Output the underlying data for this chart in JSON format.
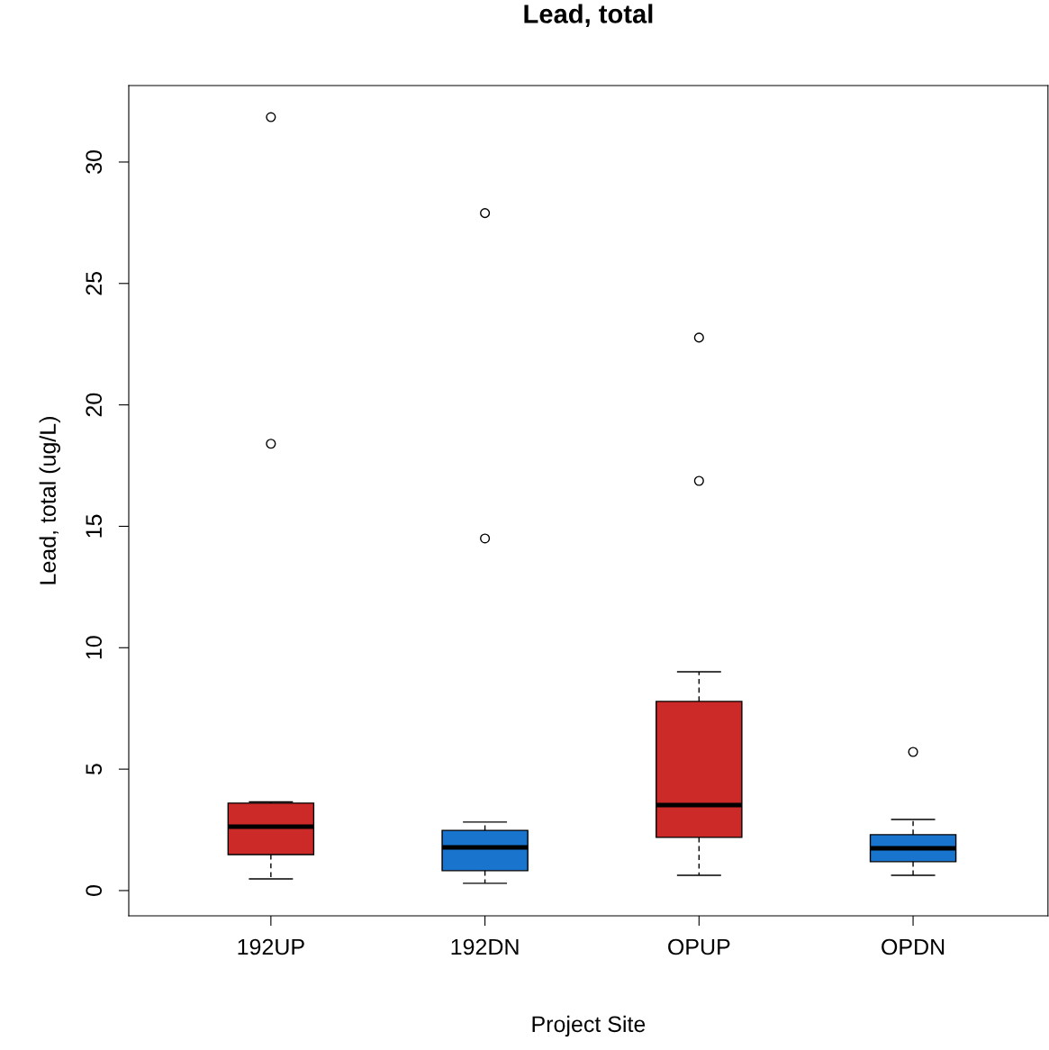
{
  "chart_data": {
    "type": "box",
    "title": "Lead, total",
    "xlabel": "Project Site",
    "ylabel": "Lead, total (ug/L)",
    "categories": [
      "192UP",
      "192DN",
      "OPUP",
      "OPDN"
    ],
    "colors": [
      "#cc2929",
      "#1874cd",
      "#cc2929",
      "#1874cd"
    ],
    "boxes": [
      {
        "low": 0.48,
        "q1": 1.48,
        "median": 2.63,
        "q3": 3.6,
        "high": 3.65,
        "outliers": [
          31.85,
          18.4
        ]
      },
      {
        "low": 0.3,
        "q1": 0.82,
        "median": 1.78,
        "q3": 2.48,
        "high": 2.82,
        "outliers": [
          27.9,
          14.5
        ]
      },
      {
        "low": 0.63,
        "q1": 2.19,
        "median": 3.52,
        "q3": 7.79,
        "high": 9.01,
        "outliers": [
          22.77,
          16.87
        ]
      },
      {
        "low": 0.63,
        "q1": 1.19,
        "median": 1.74,
        "q3": 2.3,
        "high": 2.93,
        "outliers": [
          5.71
        ]
      }
    ],
    "ylim": [
      -1.04,
      33.15
    ],
    "yticks": [
      0,
      5,
      10,
      15,
      20,
      25,
      30
    ],
    "grid": false
  }
}
